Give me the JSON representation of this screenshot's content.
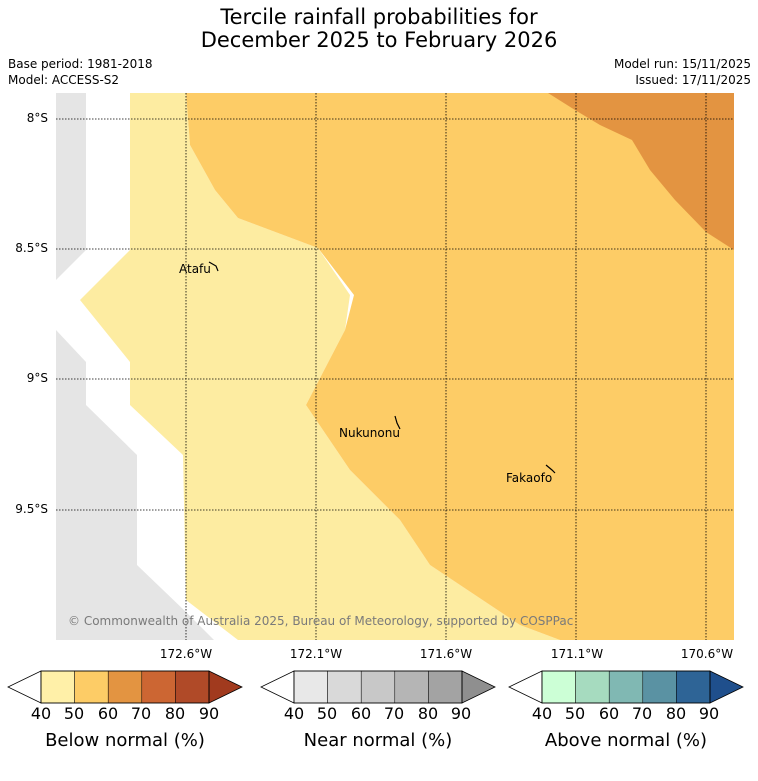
{
  "title": {
    "line1": "Tercile rainfall probabilities for",
    "line2": "December 2025 to February 2026"
  },
  "meta": {
    "base_period": "Base period: 1981-2018",
    "model": "Model: ACCESS-S2",
    "model_run": "Model run: 15/11/2025",
    "issued": "Issued: 17/11/2025"
  },
  "axes": {
    "latitudes": [
      "8°S",
      "8.5°S",
      "9°S",
      "9.5°S"
    ],
    "longitudes": [
      "172.6°W",
      "172.1°W",
      "171.6°W",
      "171.1°W",
      "170.6°W"
    ]
  },
  "places": {
    "atafu": "Atafu",
    "nukunonu": "Nukunonu",
    "fakaofo": "Fakaofo"
  },
  "copyright": "© Commonwealth of Australia 2025, Bureau of Meteorology, supported by COSPPac",
  "colorbars": [
    {
      "label": "Below normal (%)",
      "ticks": [
        "40",
        "50",
        "60",
        "70",
        "80",
        "90"
      ],
      "colors": [
        "#fff0a8",
        "#fdcc66",
        "#e39441",
        "#cc6633",
        "#b04a28",
        "#a13a1e"
      ]
    },
    {
      "label": "Near normal (%)",
      "ticks": [
        "40",
        "50",
        "60",
        "70",
        "80",
        "90"
      ],
      "colors": [
        "#e8e8e8",
        "#d9d9d9",
        "#c8c8c8",
        "#b5b5b5",
        "#a3a3a3",
        "#8f8f8f"
      ]
    },
    {
      "label": "Above normal (%)",
      "ticks": [
        "40",
        "50",
        "60",
        "70",
        "80",
        "90"
      ],
      "colors": [
        "#ccffd6",
        "#a6dbbf",
        "#80b8b3",
        "#5a92a3",
        "#2e6496",
        "#1f4f8c"
      ]
    }
  ],
  "colors": {
    "no_data": "#e5e5e5",
    "prob_40_50": "#fdeca1",
    "prob_50_60": "#fdcc66",
    "prob_60_70": "#e39441"
  }
}
